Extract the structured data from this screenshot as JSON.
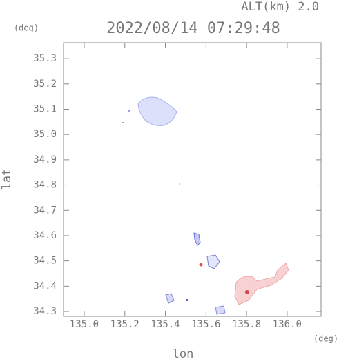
{
  "chart_data": {
    "type": "map",
    "title": "2022/08/14 07:29:48",
    "subtitle": "ALT(km) 2.0",
    "x_label": "lon",
    "y_label": "lat",
    "x_unit": "(deg)",
    "y_unit": "(deg)",
    "xlim": [
      134.898,
      136.167
    ],
    "ylim": [
      34.281,
      35.363
    ],
    "xticks": [
      {
        "value": 135,
        "label": "135.0"
      },
      135.2,
      135.4,
      135.6,
      135.8,
      {
        "value": 136,
        "label": "136.0"
      }
    ],
    "yticks": [
      34.3,
      34.4,
      34.5,
      34.6,
      34.7,
      34.8,
      34.9,
      {
        "value": 35,
        "label": "35.0"
      },
      35.1,
      35.2,
      35.3
    ]
  }
}
